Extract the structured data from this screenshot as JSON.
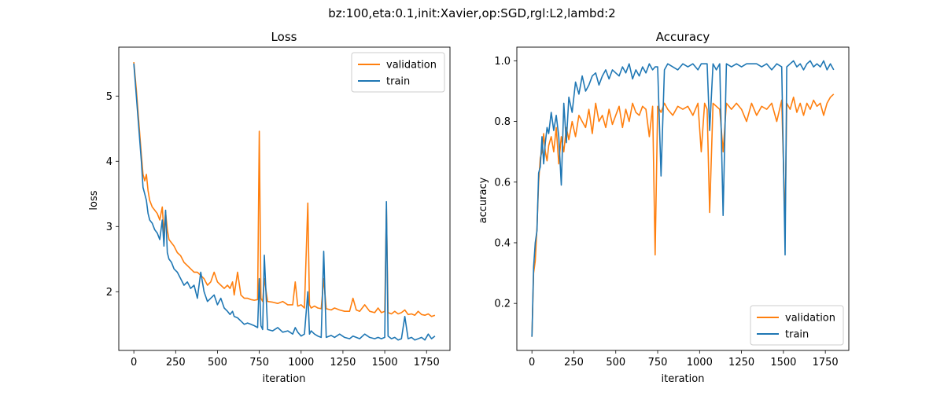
{
  "suptitle": "bz:100,eta:0.1,init:Xavier,op:SGD,rgl:L2,lambd:2",
  "colors": {
    "validation": "#ff7f0e",
    "train": "#1f77b4"
  },
  "chart_data": [
    {
      "type": "line",
      "title": "Loss",
      "xlabel": "iteration",
      "ylabel": "loss",
      "xlim": [
        -90,
        1890
      ],
      "ylim": [
        1.1,
        5.75
      ],
      "xticks": [
        0,
        250,
        500,
        750,
        1000,
        1250,
        1500,
        1750
      ],
      "yticks": [
        2,
        3,
        4,
        5
      ],
      "legend_position": "upper-right",
      "series": [
        {
          "name": "validation",
          "x": [
            0,
            15,
            30,
            45,
            55,
            65,
            75,
            85,
            95,
            110,
            125,
            140,
            155,
            170,
            180,
            190,
            200,
            210,
            225,
            240,
            260,
            280,
            300,
            320,
            340,
            360,
            380,
            400,
            420,
            440,
            460,
            480,
            500,
            520,
            540,
            560,
            575,
            590,
            600,
            620,
            640,
            660,
            680,
            700,
            720,
            740,
            750,
            760,
            770,
            780,
            800,
            830,
            860,
            890,
            920,
            950,
            965,
            980,
            1000,
            1020,
            1040,
            1050,
            1060,
            1080,
            1100,
            1120,
            1135,
            1150,
            1180,
            1200,
            1230,
            1260,
            1290,
            1310,
            1330,
            1350,
            1380,
            1410,
            1440,
            1460,
            1480,
            1500,
            1510,
            1520,
            1540,
            1560,
            1580,
            1600,
            1620,
            1640,
            1660,
            1680,
            1700,
            1720,
            1740,
            1760,
            1780,
            1800
          ],
          "y": [
            5.52,
            5.1,
            4.6,
            4.1,
            3.8,
            3.7,
            3.8,
            3.55,
            3.4,
            3.3,
            3.25,
            3.2,
            3.1,
            3.3,
            2.9,
            3.22,
            2.95,
            2.8,
            2.75,
            2.7,
            2.6,
            2.55,
            2.45,
            2.4,
            2.35,
            2.3,
            2.3,
            2.25,
            2.2,
            2.1,
            2.15,
            2.3,
            2.15,
            2.1,
            2.05,
            2.1,
            2.05,
            2.15,
            1.95,
            2.3,
            1.95,
            1.9,
            1.9,
            1.88,
            1.87,
            1.88,
            4.46,
            1.9,
            1.85,
            2.2,
            1.85,
            1.84,
            1.82,
            1.85,
            1.8,
            1.8,
            2.15,
            1.78,
            1.8,
            1.75,
            3.36,
            1.8,
            1.75,
            1.78,
            1.75,
            1.74,
            2.2,
            1.74,
            1.72,
            1.75,
            1.72,
            1.7,
            1.7,
            1.9,
            1.72,
            1.7,
            1.8,
            1.7,
            1.68,
            1.75,
            1.68,
            1.7,
            3.27,
            1.68,
            1.66,
            1.7,
            1.66,
            1.68,
            1.72,
            1.65,
            1.66,
            1.64,
            1.7,
            1.65,
            1.64,
            1.66,
            1.62,
            1.64
          ]
        },
        {
          "name": "train",
          "x": [
            0,
            15,
            30,
            45,
            55,
            65,
            75,
            85,
            95,
            110,
            125,
            140,
            155,
            170,
            180,
            190,
            200,
            210,
            225,
            240,
            260,
            280,
            300,
            320,
            340,
            360,
            380,
            400,
            420,
            440,
            460,
            480,
            500,
            520,
            540,
            560,
            575,
            590,
            600,
            620,
            640,
            660,
            680,
            700,
            720,
            740,
            750,
            760,
            770,
            780,
            800,
            830,
            860,
            890,
            920,
            950,
            965,
            980,
            1000,
            1020,
            1040,
            1050,
            1060,
            1080,
            1100,
            1120,
            1135,
            1150,
            1180,
            1200,
            1230,
            1260,
            1290,
            1310,
            1330,
            1350,
            1380,
            1410,
            1440,
            1460,
            1480,
            1500,
            1510,
            1520,
            1540,
            1560,
            1580,
            1600,
            1620,
            1640,
            1660,
            1680,
            1700,
            1720,
            1740,
            1760,
            1780,
            1800
          ],
          "y": [
            5.5,
            5.0,
            4.5,
            4.0,
            3.6,
            3.5,
            3.4,
            3.2,
            3.1,
            3.05,
            2.95,
            2.9,
            2.8,
            3.1,
            2.7,
            3.25,
            2.6,
            2.5,
            2.45,
            2.35,
            2.3,
            2.2,
            2.1,
            2.15,
            2.05,
            2.1,
            1.9,
            2.3,
            2.0,
            1.85,
            1.9,
            1.95,
            1.8,
            1.9,
            1.75,
            1.7,
            1.65,
            1.7,
            1.62,
            1.6,
            1.55,
            1.5,
            1.52,
            1.5,
            1.48,
            1.45,
            2.2,
            1.48,
            1.42,
            2.56,
            1.42,
            1.4,
            1.45,
            1.38,
            1.4,
            1.35,
            1.45,
            1.38,
            1.32,
            1.35,
            2.0,
            1.35,
            1.4,
            1.35,
            1.32,
            1.3,
            2.62,
            1.3,
            1.33,
            1.3,
            1.35,
            1.3,
            1.28,
            1.32,
            1.3,
            1.28,
            1.35,
            1.3,
            1.28,
            1.3,
            1.28,
            1.3,
            3.38,
            1.32,
            1.28,
            1.3,
            1.26,
            1.28,
            1.62,
            1.28,
            1.3,
            1.26,
            1.28,
            1.3,
            1.26,
            1.35,
            1.28,
            1.32
          ]
        }
      ]
    },
    {
      "type": "line",
      "title": "Accuracy",
      "xlabel": "iteration",
      "ylabel": "accuracy",
      "xlim": [
        -90,
        1890
      ],
      "ylim": [
        0.045,
        1.045
      ],
      "xticks": [
        0,
        250,
        500,
        750,
        1000,
        1250,
        1500,
        1750
      ],
      "yticks": [
        0.2,
        0.4,
        0.6,
        0.8,
        1.0
      ],
      "legend_position": "lower-right",
      "series": [
        {
          "name": "validation",
          "x": [
            0,
            10,
            20,
            30,
            40,
            50,
            60,
            70,
            80,
            90,
            100,
            115,
            130,
            145,
            160,
            175,
            190,
            205,
            220,
            240,
            260,
            280,
            300,
            320,
            340,
            360,
            380,
            400,
            420,
            440,
            460,
            480,
            500,
            520,
            540,
            560,
            580,
            600,
            620,
            640,
            660,
            680,
            700,
            720,
            735,
            750,
            770,
            790,
            810,
            840,
            870,
            900,
            930,
            960,
            990,
            1010,
            1030,
            1045,
            1060,
            1080,
            1100,
            1120,
            1140,
            1160,
            1190,
            1220,
            1250,
            1280,
            1310,
            1340,
            1370,
            1400,
            1430,
            1460,
            1490,
            1510,
            1520,
            1540,
            1560,
            1580,
            1600,
            1620,
            1640,
            1660,
            1680,
            1700,
            1720,
            1740,
            1760,
            1780,
            1800
          ],
          "y": [
            0.09,
            0.3,
            0.34,
            0.45,
            0.6,
            0.68,
            0.7,
            0.76,
            0.7,
            0.67,
            0.72,
            0.75,
            0.7,
            0.78,
            0.66,
            0.75,
            0.7,
            0.78,
            0.74,
            0.8,
            0.75,
            0.82,
            0.8,
            0.78,
            0.84,
            0.76,
            0.86,
            0.8,
            0.82,
            0.78,
            0.84,
            0.79,
            0.82,
            0.85,
            0.78,
            0.84,
            0.8,
            0.86,
            0.83,
            0.82,
            0.85,
            0.84,
            0.75,
            0.85,
            0.36,
            0.85,
            0.83,
            0.86,
            0.84,
            0.82,
            0.85,
            0.84,
            0.85,
            0.82,
            0.86,
            0.7,
            0.86,
            0.84,
            0.5,
            0.86,
            0.85,
            0.84,
            0.7,
            0.86,
            0.84,
            0.86,
            0.84,
            0.8,
            0.86,
            0.82,
            0.85,
            0.84,
            0.86,
            0.8,
            0.87,
            0.46,
            0.86,
            0.84,
            0.88,
            0.83,
            0.86,
            0.82,
            0.86,
            0.84,
            0.87,
            0.85,
            0.86,
            0.82,
            0.86,
            0.88,
            0.89
          ]
        },
        {
          "name": "train",
          "x": [
            0,
            10,
            20,
            30,
            40,
            50,
            60,
            70,
            80,
            90,
            100,
            115,
            130,
            145,
            160,
            175,
            190,
            205,
            220,
            240,
            260,
            280,
            300,
            320,
            340,
            360,
            380,
            400,
            420,
            440,
            460,
            480,
            500,
            520,
            540,
            560,
            580,
            600,
            620,
            640,
            660,
            680,
            700,
            720,
            735,
            750,
            770,
            790,
            810,
            840,
            870,
            900,
            930,
            960,
            990,
            1010,
            1030,
            1045,
            1060,
            1080,
            1100,
            1120,
            1140,
            1160,
            1190,
            1220,
            1250,
            1280,
            1310,
            1340,
            1370,
            1400,
            1430,
            1460,
            1490,
            1510,
            1520,
            1540,
            1560,
            1580,
            1600,
            1620,
            1640,
            1660,
            1680,
            1700,
            1720,
            1740,
            1760,
            1780,
            1800
          ],
          "y": [
            0.09,
            0.32,
            0.4,
            0.44,
            0.63,
            0.65,
            0.75,
            0.66,
            0.73,
            0.78,
            0.76,
            0.83,
            0.77,
            0.82,
            0.75,
            0.59,
            0.86,
            0.73,
            0.88,
            0.83,
            0.93,
            0.89,
            0.95,
            0.9,
            0.92,
            0.95,
            0.96,
            0.92,
            0.95,
            0.97,
            0.94,
            0.97,
            0.96,
            0.95,
            0.98,
            0.96,
            0.99,
            0.94,
            0.97,
            0.95,
            0.98,
            0.96,
            0.99,
            0.97,
            0.98,
            0.98,
            0.62,
            0.97,
            0.99,
            0.98,
            0.97,
            0.99,
            0.98,
            0.99,
            0.97,
            0.99,
            0.99,
            0.99,
            0.77,
            0.99,
            0.97,
            0.99,
            0.49,
            0.99,
            0.98,
            0.99,
            0.98,
            0.99,
            0.99,
            0.99,
            0.98,
            0.99,
            0.97,
            0.99,
            0.98,
            0.36,
            0.98,
            0.99,
            1.0,
            0.98,
            0.99,
            0.97,
            0.99,
            1.0,
            0.98,
            0.99,
            0.98,
            1.0,
            0.97,
            0.99,
            0.97
          ]
        }
      ]
    }
  ]
}
